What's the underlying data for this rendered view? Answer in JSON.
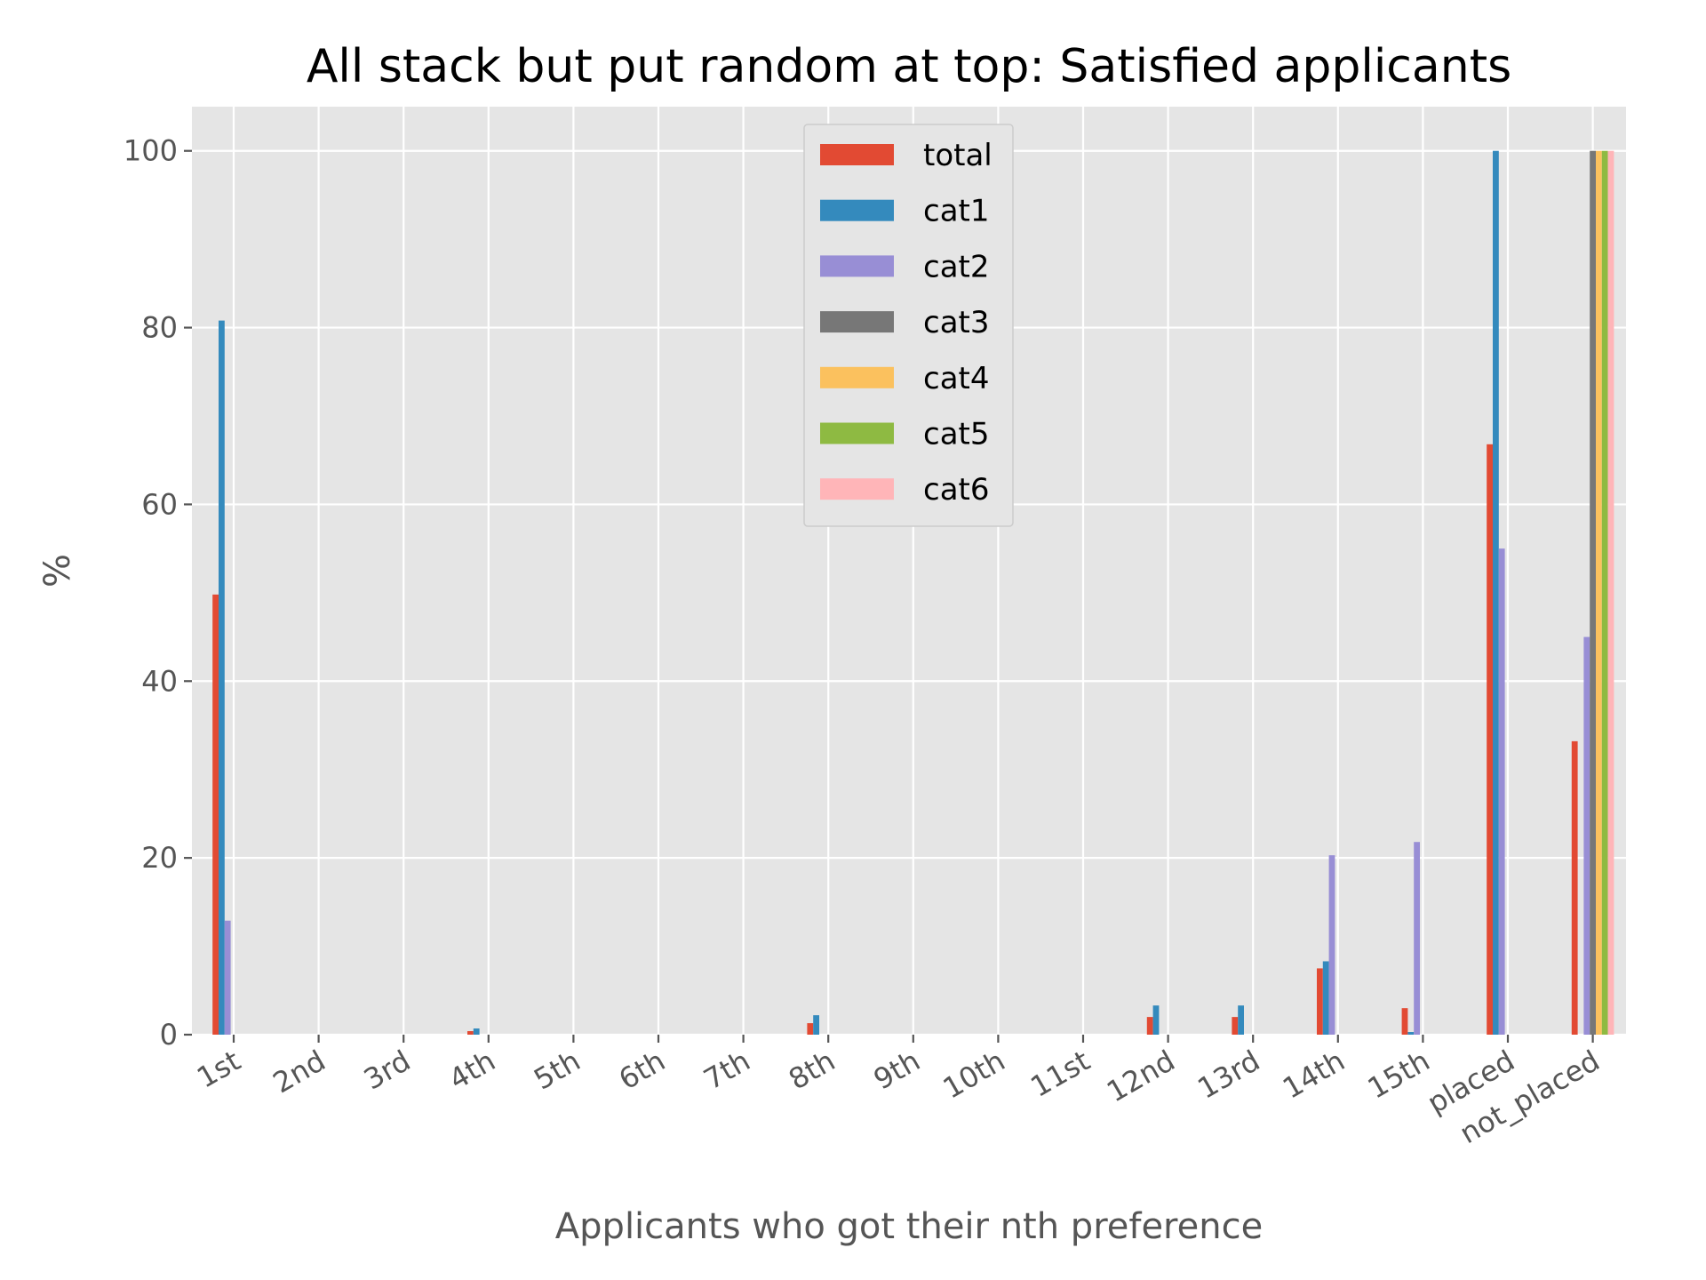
{
  "chart_data": {
    "type": "bar",
    "title": "All stack but put random at top: Satisfied applicants",
    "xlabel": "Applicants who got their nth preference",
    "ylabel": "%",
    "ylim": [
      0,
      105
    ],
    "yticks": [
      0,
      20,
      40,
      60,
      80,
      100
    ],
    "grid": true,
    "legend_position": "top-center",
    "categories": [
      "1st",
      "2nd",
      "3rd",
      "4th",
      "5th",
      "6th",
      "7th",
      "8th",
      "9th",
      "10th",
      "11st",
      "12nd",
      "13rd",
      "14th",
      "15th",
      "placed",
      "not_placed"
    ],
    "series": [
      {
        "name": "total",
        "color": "#e24a33",
        "values": [
          49.8,
          0,
          0,
          0.4,
          0,
          0,
          0,
          1.3,
          0,
          0,
          0,
          2.0,
          2.0,
          7.5,
          3.0,
          66.8,
          33.2
        ]
      },
      {
        "name": "cat1",
        "color": "#348abd",
        "values": [
          80.8,
          0,
          0,
          0.7,
          0,
          0,
          0,
          2.2,
          0,
          0,
          0,
          3.3,
          3.3,
          8.3,
          0.3,
          100,
          0
        ]
      },
      {
        "name": "cat2",
        "color": "#988ed5",
        "values": [
          12.9,
          0,
          0,
          0,
          0,
          0,
          0,
          0,
          0,
          0,
          0,
          0,
          0,
          20.3,
          21.8,
          55.0,
          45.0
        ]
      },
      {
        "name": "cat3",
        "color": "#777777",
        "values": [
          0,
          0,
          0,
          0,
          0,
          0,
          0,
          0,
          0,
          0,
          0,
          0,
          0,
          0,
          0,
          0,
          100
        ]
      },
      {
        "name": "cat4",
        "color": "#fbc15e",
        "values": [
          0,
          0,
          0,
          0,
          0,
          0,
          0,
          0,
          0,
          0,
          0,
          0,
          0,
          0,
          0,
          0,
          100
        ]
      },
      {
        "name": "cat5",
        "color": "#8eba42",
        "values": [
          0,
          0,
          0,
          0,
          0,
          0,
          0,
          0,
          0,
          0,
          0,
          0,
          0,
          0,
          0,
          0,
          100
        ]
      },
      {
        "name": "cat6",
        "color": "#ffb5b8",
        "values": [
          0,
          0,
          0,
          0,
          0,
          0,
          0,
          0,
          0,
          0,
          0,
          0,
          0,
          0,
          0,
          0,
          100
        ]
      }
    ]
  }
}
